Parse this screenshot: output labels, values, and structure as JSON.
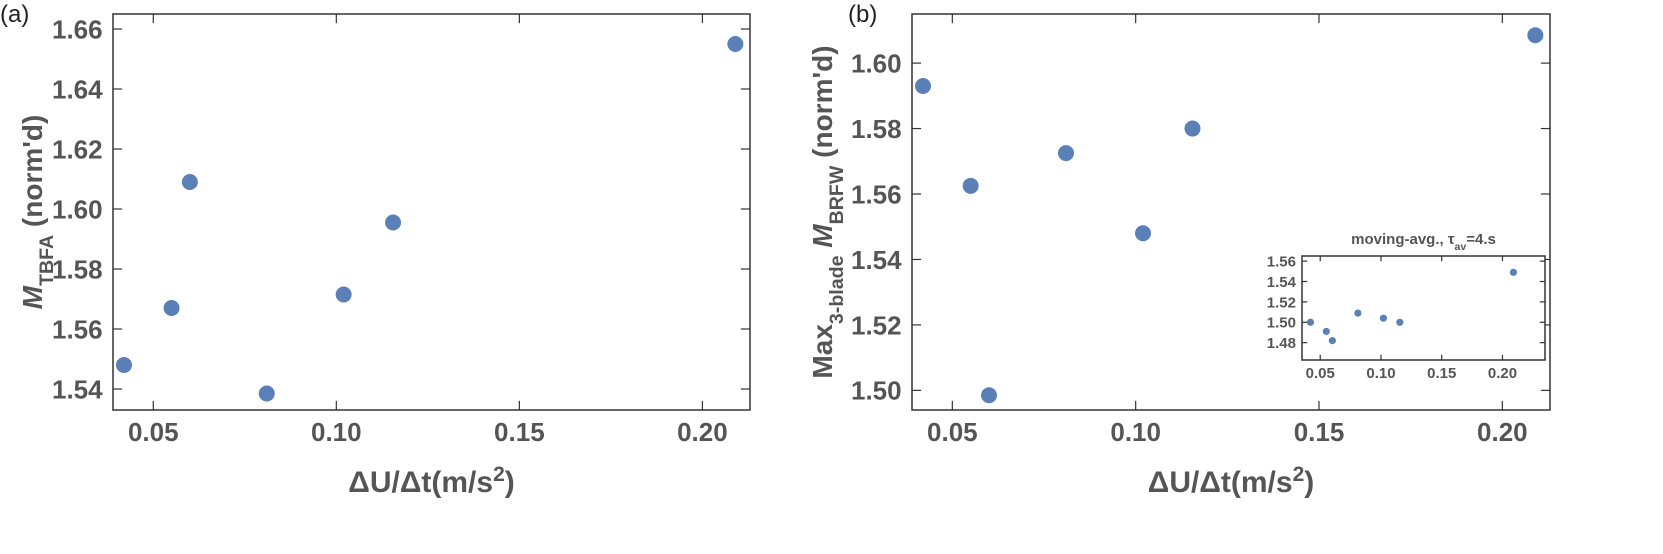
{
  "chart_data": [
    {
      "type": "scatter",
      "panel_label": "(a)",
      "xlabel_parts": [
        {
          "text": "ΔU/Δt(m/s"
        },
        {
          "text": "2",
          "sup": true
        },
        {
          "text": ")"
        }
      ],
      "ylabel_parts": [
        {
          "text": "M",
          "italic": true
        },
        {
          "text": "TBFA",
          "sub": true
        },
        {
          "text": " (norm'd)"
        }
      ],
      "x": [
        0.042,
        0.055,
        0.06,
        0.081,
        0.102,
        0.1155,
        0.209
      ],
      "y": [
        1.548,
        1.567,
        1.609,
        1.5385,
        1.5715,
        1.5955,
        1.655
      ],
      "color": "#5b80b8",
      "xlim": [
        0.039,
        0.213
      ],
      "xticks": [
        0.05,
        {
          "value": 0.1,
          "label": "0.10"
        },
        0.15,
        {
          "value": 0.2,
          "label": "0.20"
        }
      ],
      "ylim": [
        1.533,
        1.665
      ],
      "yticks": [
        1.54,
        1.56,
        1.58,
        {
          "value": 1.6,
          "label": "1.60"
        },
        1.62,
        1.64,
        1.66
      ]
    },
    {
      "type": "scatter",
      "panel_label": "(b)",
      "xlabel_parts": [
        {
          "text": "ΔU/Δt(m/s"
        },
        {
          "text": "2",
          "sup": true
        },
        {
          "text": ")"
        }
      ],
      "ylabel_parts": [
        {
          "text": "Max"
        },
        {
          "text": "3-blade",
          "sub": true
        },
        {
          "text": " M",
          "italic": true
        },
        {
          "text": "BRFW",
          "sub": true
        },
        {
          "text": " (norm'd)"
        }
      ],
      "x": [
        0.042,
        0.055,
        0.06,
        0.081,
        0.102,
        0.1155,
        0.209
      ],
      "y": [
        1.593,
        1.5625,
        1.4985,
        1.5725,
        1.548,
        1.58,
        1.6085
      ],
      "color": "#5b80b8",
      "xlim": [
        0.039,
        0.213
      ],
      "xticks": [
        0.05,
        {
          "value": 0.1,
          "label": "0.10"
        },
        0.15,
        {
          "value": 0.2,
          "label": "0.20"
        }
      ],
      "ylim": [
        1.494,
        1.615
      ],
      "yticks": [
        {
          "value": 1.5,
          "label": "1.50"
        },
        1.52,
        1.54,
        1.56,
        1.58,
        {
          "value": 1.6,
          "label": "1.60"
        }
      ]
    },
    {
      "type": "scatter",
      "title_parts": [
        {
          "text": "moving-avg., τ"
        },
        {
          "text": "av",
          "sub": true
        },
        {
          "text": "=4.s"
        }
      ],
      "x": [
        0.042,
        0.055,
        0.06,
        0.081,
        0.102,
        0.1155,
        0.209
      ],
      "y": [
        1.5,
        1.491,
        1.482,
        1.509,
        1.504,
        1.5,
        1.549
      ],
      "color": "#5b80b8",
      "xlim": [
        0.035,
        0.235
      ],
      "xticks": [
        0.05,
        {
          "value": 0.1,
          "label": "0.10"
        },
        0.15,
        {
          "value": 0.2,
          "label": "0.20"
        }
      ],
      "ylim": [
        1.463,
        1.565
      ],
      "yticks": [
        1.48,
        {
          "value": 1.5,
          "label": "1.50"
        },
        1.52,
        1.54,
        1.56
      ]
    }
  ]
}
